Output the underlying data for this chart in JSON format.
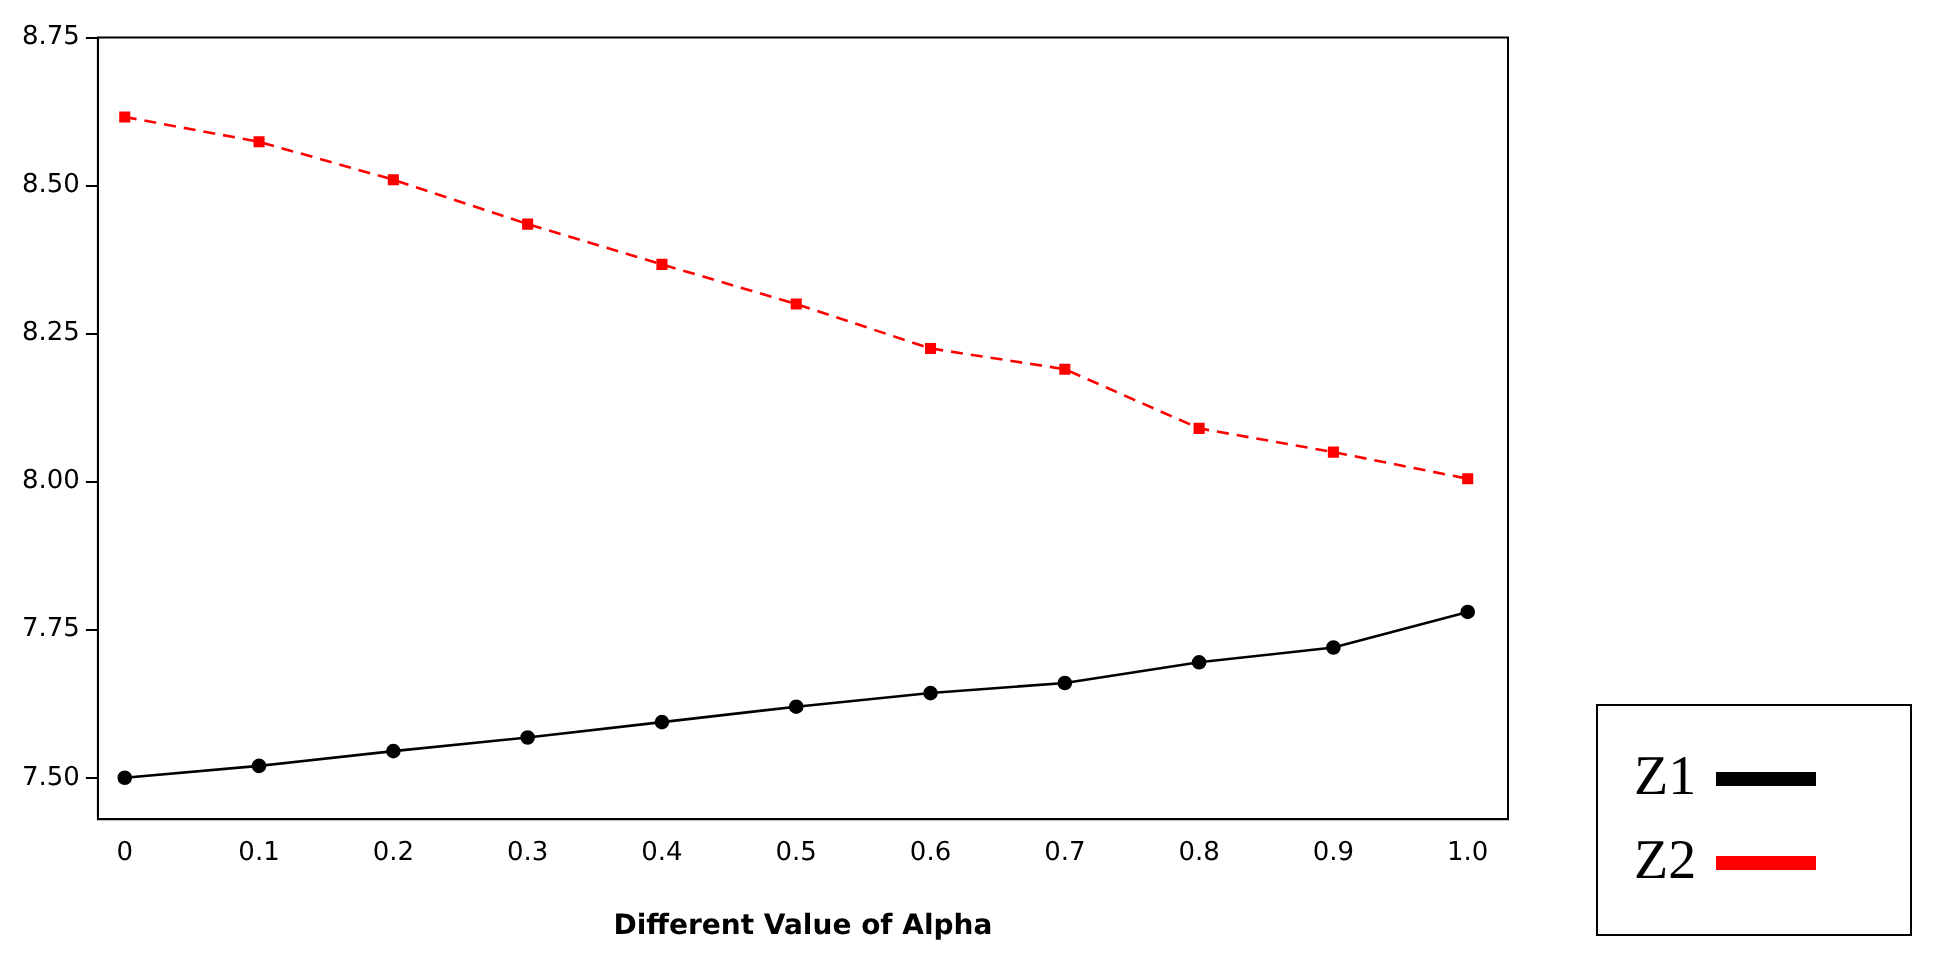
{
  "chart_data": {
    "type": "line",
    "xlabel": "Different Value of Alpha",
    "x": [
      0,
      0.1,
      0.2,
      0.3,
      0.4,
      0.5,
      0.6,
      0.7,
      0.8,
      0.9,
      1.0
    ],
    "series": [
      {
        "name": "Z1",
        "color": "#000000",
        "marker": "circle",
        "line_style": "solid",
        "values": [
          7.5,
          7.52,
          7.545,
          7.568,
          7.594,
          7.62,
          7.643,
          7.66,
          7.695,
          7.72,
          7.78
        ]
      },
      {
        "name": "Z2",
        "color": "#ff0000",
        "marker": "square",
        "line_style": "dashed",
        "values": [
          8.616,
          8.574,
          8.51,
          8.435,
          8.367,
          8.3,
          8.225,
          8.19,
          8.09,
          8.05,
          8.005
        ]
      }
    ],
    "xlim": [
      -0.02,
      1.03
    ],
    "xticks": [
      {
        "value": 0,
        "label": "0"
      },
      0.1,
      0.2,
      0.3,
      0.4,
      0.5,
      0.6,
      0.7,
      0.8,
      0.9,
      {
        "value": 1,
        "label": "1.0"
      }
    ],
    "ylim": [
      7.43,
      8.75
    ],
    "yticks": [
      {
        "value": 7.5,
        "label": "7.50"
      },
      {
        "value": 7.75,
        "label": "7.75"
      },
      {
        "value": 8,
        "label": "8.00"
      },
      {
        "value": 8.25,
        "label": "8.25"
      },
      {
        "value": 8.5,
        "label": "8.50"
      },
      {
        "value": 8.75,
        "label": "8.75"
      }
    ],
    "grid": false,
    "legend": "bottom right"
  }
}
